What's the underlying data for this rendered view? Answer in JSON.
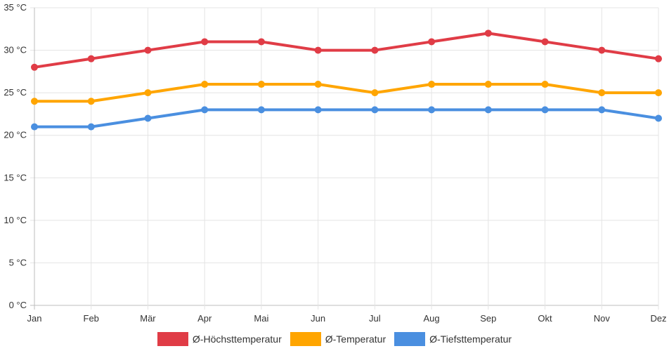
{
  "chart_data": {
    "type": "line",
    "categories": [
      "Jan",
      "Feb",
      "Mär",
      "Apr",
      "Mai",
      "Jun",
      "Jul",
      "Aug",
      "Sep",
      "Okt",
      "Nov",
      "Dez"
    ],
    "series": [
      {
        "name": "Ø-Höchsttemperatur",
        "color": "#e03c46",
        "values": [
          28,
          29,
          30,
          31,
          31,
          30,
          30,
          31,
          32,
          31,
          30,
          29
        ]
      },
      {
        "name": "Ø-Temperatur",
        "color": "#ffa500",
        "values": [
          24,
          24,
          25,
          26,
          26,
          26,
          25,
          26,
          26,
          26,
          25,
          25
        ]
      },
      {
        "name": "Ø-Tiefsttemperatur",
        "color": "#4a8fe0",
        "values": [
          21,
          21,
          22,
          23,
          23,
          23,
          23,
          23,
          23,
          23,
          23,
          22
        ]
      }
    ],
    "y_ticks": [
      "0 °C",
      "5 °C",
      "10 °C",
      "15 °C",
      "20 °C",
      "25 °C",
      "30 °C",
      "35 °C"
    ],
    "ylim": [
      0,
      35
    ],
    "y_step": 5,
    "grid": true,
    "legend_position": "bottom"
  }
}
